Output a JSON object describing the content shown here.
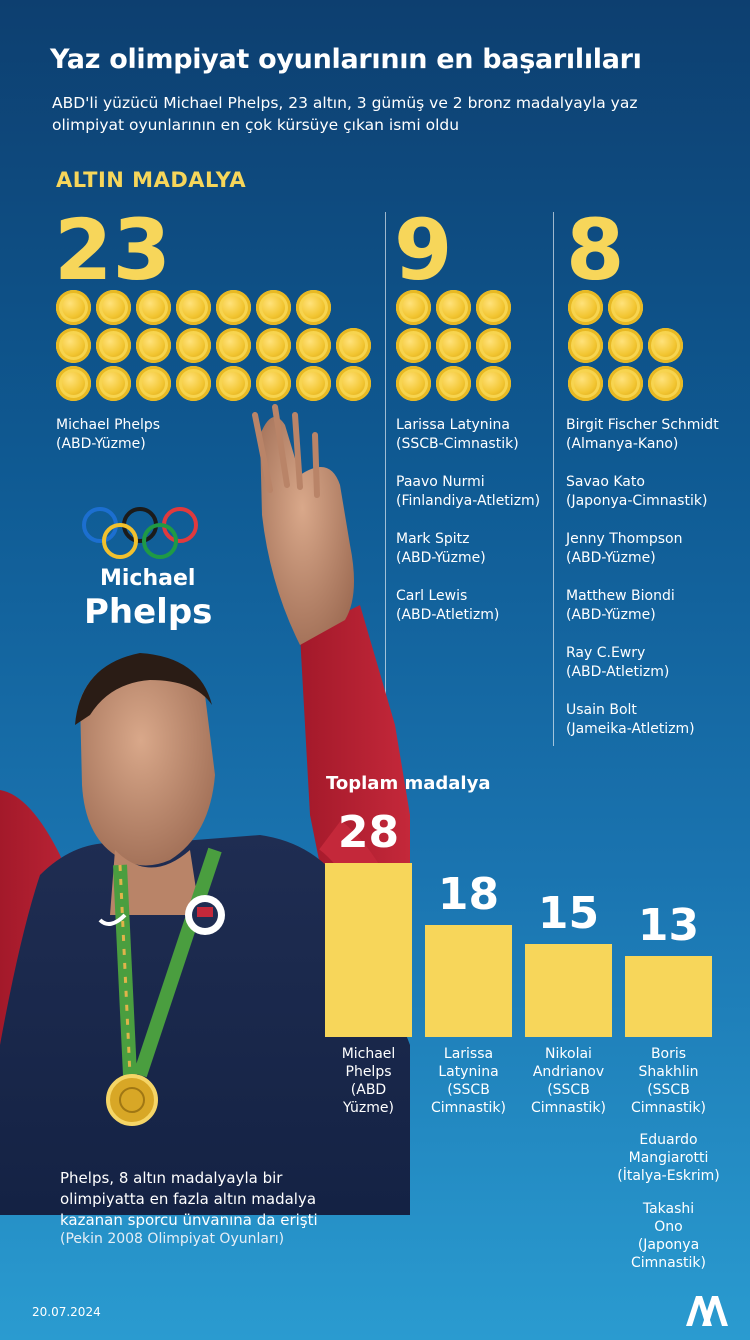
{
  "header": {
    "title": "Yaz olimpiyat oyunlarının en başarılıları",
    "subtitle": "ABD'li yüzücü Michael Phelps, 23 altın, 3 gümüş ve 2 bronz madalyayla yaz olimpiyat oyunlarının en çok kürsüye çıkan ismi oldu"
  },
  "chart_data": [
    {
      "type": "pictogram",
      "title": "ALTIN MADALYA",
      "groups": [
        {
          "value": 23,
          "label": "23",
          "athletes": [
            {
              "name": "Michael Phelps",
              "detail": "(ABD-Yüzme)"
            }
          ]
        },
        {
          "value": 9,
          "label": "9",
          "athletes": [
            {
              "name": "Larissa Latynina",
              "detail": "(SSCB-Cimnastik)"
            },
            {
              "name": "Paavo Nurmi",
              "detail": "(Finlandiya-Atletizm)"
            },
            {
              "name": "Mark Spitz",
              "detail": "(ABD-Yüzme)"
            },
            {
              "name": "Carl Lewis",
              "detail": "(ABD-Atletizm)"
            }
          ]
        },
        {
          "value": 8,
          "label": "8",
          "athletes": [
            {
              "name": "Birgit Fischer Schmidt",
              "detail": "(Almanya-Kano)"
            },
            {
              "name": "Savao Kato",
              "detail": "(Japonya-Cimnastik)"
            },
            {
              "name": "Jenny Thompson",
              "detail": "(ABD-Yüzme)"
            },
            {
              "name": "Matthew Biondi",
              "detail": "(ABD-Yüzme)"
            },
            {
              "name": "Ray C.Ewry",
              "detail": "(ABD-Atletizm)"
            },
            {
              "name": "Usain Bolt",
              "detail": "(Jameika-Atletizm)"
            }
          ]
        }
      ]
    },
    {
      "type": "bar",
      "title": "Toplam madalya",
      "categories": [
        "Michael Phelps (ABD Yüzme)",
        "Larissa Latynina (SSCB Cimnastik)",
        "Nikolai Andrianov (SSCB Cimnastik)",
        "Boris Shakhlin (SSCB Cimnastik)"
      ],
      "values": [
        28,
        18,
        15,
        13
      ],
      "value_labels": [
        "28",
        "18",
        "15",
        "13"
      ],
      "ylim": [
        0,
        28
      ],
      "grid": false
    }
  ],
  "bar_names": [
    [
      "Michael",
      "Phelps",
      "(ABD",
      "Yüzme)"
    ],
    [
      "Larissa",
      "Latynina",
      "(SSCB",
      "Cimnastik)"
    ],
    [
      "Nikolai",
      "Andrianov",
      "(SSCB",
      "Cimnastik)"
    ],
    [
      "Boris",
      "Shakhlin",
      "(SSCB",
      "Cimnastik)"
    ]
  ],
  "extra_13": [
    [
      "Eduardo",
      "Mangiarotti",
      "(İtalya-Eskrim)"
    ],
    [
      "Takashi",
      "Ono",
      "(Japonya",
      "Cimnastik)"
    ]
  ],
  "logo": {
    "first": "Michael",
    "last": "Phelps"
  },
  "note": {
    "text": "Phelps, 8 altın madalyayla bir olimpiyatta en fazla altın madalya kazanan sporcu ünvanına da erişti",
    "source": "(Pekin 2008 Olimpiyat Oyunları)"
  },
  "footer": {
    "date": "20.07.2024"
  },
  "colors": {
    "gold": "#f7d65a",
    "bg_top": "#0d3f70",
    "bg_bottom": "#2a9bd0"
  },
  "icons": [
    "olympic-rings-icon",
    "gold-medal-icon",
    "aa-logo-icon"
  ]
}
